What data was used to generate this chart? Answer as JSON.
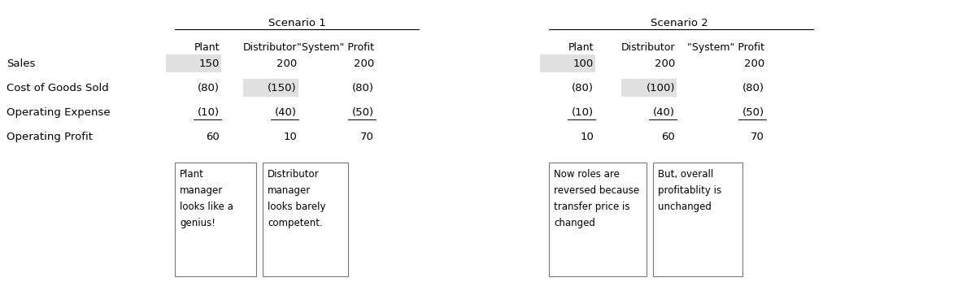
{
  "scenario1_title": "Scenario 1",
  "scenario2_title": "Scenario 2",
  "col_headers": [
    "Plant",
    "Distributor",
    "\"System\" Profit"
  ],
  "row_labels": [
    "Sales",
    "Cost of Goods Sold",
    "Operating Expense",
    "Operating Profit"
  ],
  "s1_plant": [
    "150",
    "(80)",
    "(10)",
    "60"
  ],
  "s1_distributor": [
    "200",
    "(150)",
    "(40)",
    "10"
  ],
  "s1_system": [
    "200",
    "(80)",
    "(50)",
    "70"
  ],
  "s2_plant": [
    "100",
    "(80)",
    "(10)",
    "10"
  ],
  "s2_distributor": [
    "200",
    "(100)",
    "(40)",
    "60"
  ],
  "s2_system": [
    "200",
    "(80)",
    "(50)",
    "70"
  ],
  "box1_text": "Plant\nmanager\nlooks like a\ngenius!",
  "box2_text": "Distributor\nmanager\nlooks barely\ncompetent.",
  "box3_text": "Now roles are\nreversed because\ntransfer price is\nchanged",
  "box4_text": "But, overall\nprofitablity is\nunchanged",
  "shade_color": "#e0e0e0",
  "bg_color": "#ffffff",
  "font_size": 9.5
}
